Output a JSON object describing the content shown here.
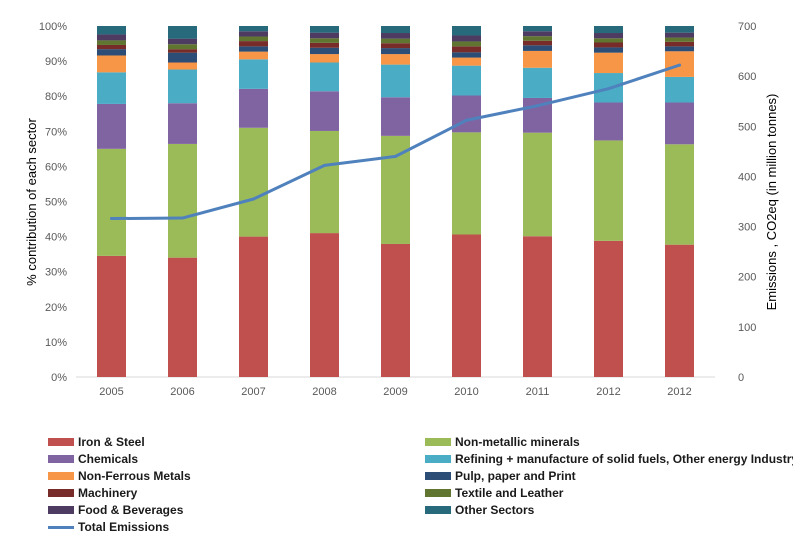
{
  "chart_data": {
    "type": "bar",
    "stacked": true,
    "categories": [
      "2005",
      "2006",
      "2007",
      "2008",
      "2009",
      "2010",
      "2011",
      "2012",
      "2012"
    ],
    "ylabel": "% contribution of each sector",
    "y2label": "Emissions , CO2eq (in million tonnes)",
    "ylim": [
      0,
      100
    ],
    "y2lim": [
      0,
      700
    ],
    "yticks": [
      "0%",
      "10%",
      "20%",
      "30%",
      "40%",
      "50%",
      "60%",
      "70%",
      "80%",
      "90%",
      "100%"
    ],
    "y2ticks": [
      "0",
      "100",
      "200",
      "300",
      "400",
      "500",
      "600",
      "700"
    ],
    "grid": false,
    "legend_position": "bottom",
    "series": [
      {
        "name": "Iron & Steel",
        "color": "#C0504D",
        "values": [
          34.5,
          34.0,
          40.0,
          41.0,
          37.9,
          40.6,
          40.1,
          38.8,
          37.7
        ]
      },
      {
        "name": "Non-metallic minerals",
        "color": "#9BBB59",
        "values": [
          30.5,
          32.4,
          31.0,
          29.1,
          30.8,
          29.1,
          29.5,
          28.6,
          28.6
        ]
      },
      {
        "name": "Chemicals",
        "color": "#8064A2",
        "values": [
          12.8,
          11.6,
          11.1,
          11.3,
          11.0,
          10.5,
          9.9,
          10.8,
          11.9
        ]
      },
      {
        "name": "Refining + manufacture of solid fuels, Other energy Industry",
        "color": "#4BACC6",
        "values": [
          9.0,
          9.6,
          8.4,
          8.2,
          9.3,
          8.5,
          8.6,
          8.4,
          7.3
        ]
      },
      {
        "name": "Non-Ferrous Metals",
        "color": "#F79646",
        "values": [
          4.8,
          2.0,
          2.2,
          2.4,
          3.0,
          2.3,
          4.8,
          5.8,
          7.3
        ]
      },
      {
        "name": "Pulp, paper and Print",
        "color": "#2C4D75",
        "values": [
          1.8,
          2.8,
          1.5,
          1.8,
          1.7,
          1.5,
          1.6,
          1.5,
          1.4
        ]
      },
      {
        "name": "Machinery",
        "color": "#772C2A",
        "values": [
          1.2,
          1.0,
          1.5,
          1.4,
          1.4,
          1.7,
          1.3,
          1.4,
          1.3
        ]
      },
      {
        "name": "Textile and Leather",
        "color": "#5F7530",
        "values": [
          1.3,
          1.4,
          1.3,
          1.3,
          1.3,
          1.4,
          1.3,
          1.2,
          1.2
        ]
      },
      {
        "name": "Food & Beverages",
        "color": "#4D3B62",
        "values": [
          1.7,
          1.6,
          1.5,
          1.6,
          1.6,
          1.7,
          1.4,
          1.5,
          1.4
        ]
      },
      {
        "name": "Other Sectors",
        "color": "#276A7C",
        "values": [
          2.4,
          3.6,
          1.5,
          1.9,
          2.0,
          2.7,
          1.5,
          2.0,
          1.9
        ]
      }
    ],
    "line_series": {
      "name": "Total Emissions",
      "color": "#4F81BD",
      "axis": "secondary",
      "values": [
        316,
        317,
        355,
        422,
        440,
        512,
        541,
        575,
        622
      ]
    }
  }
}
